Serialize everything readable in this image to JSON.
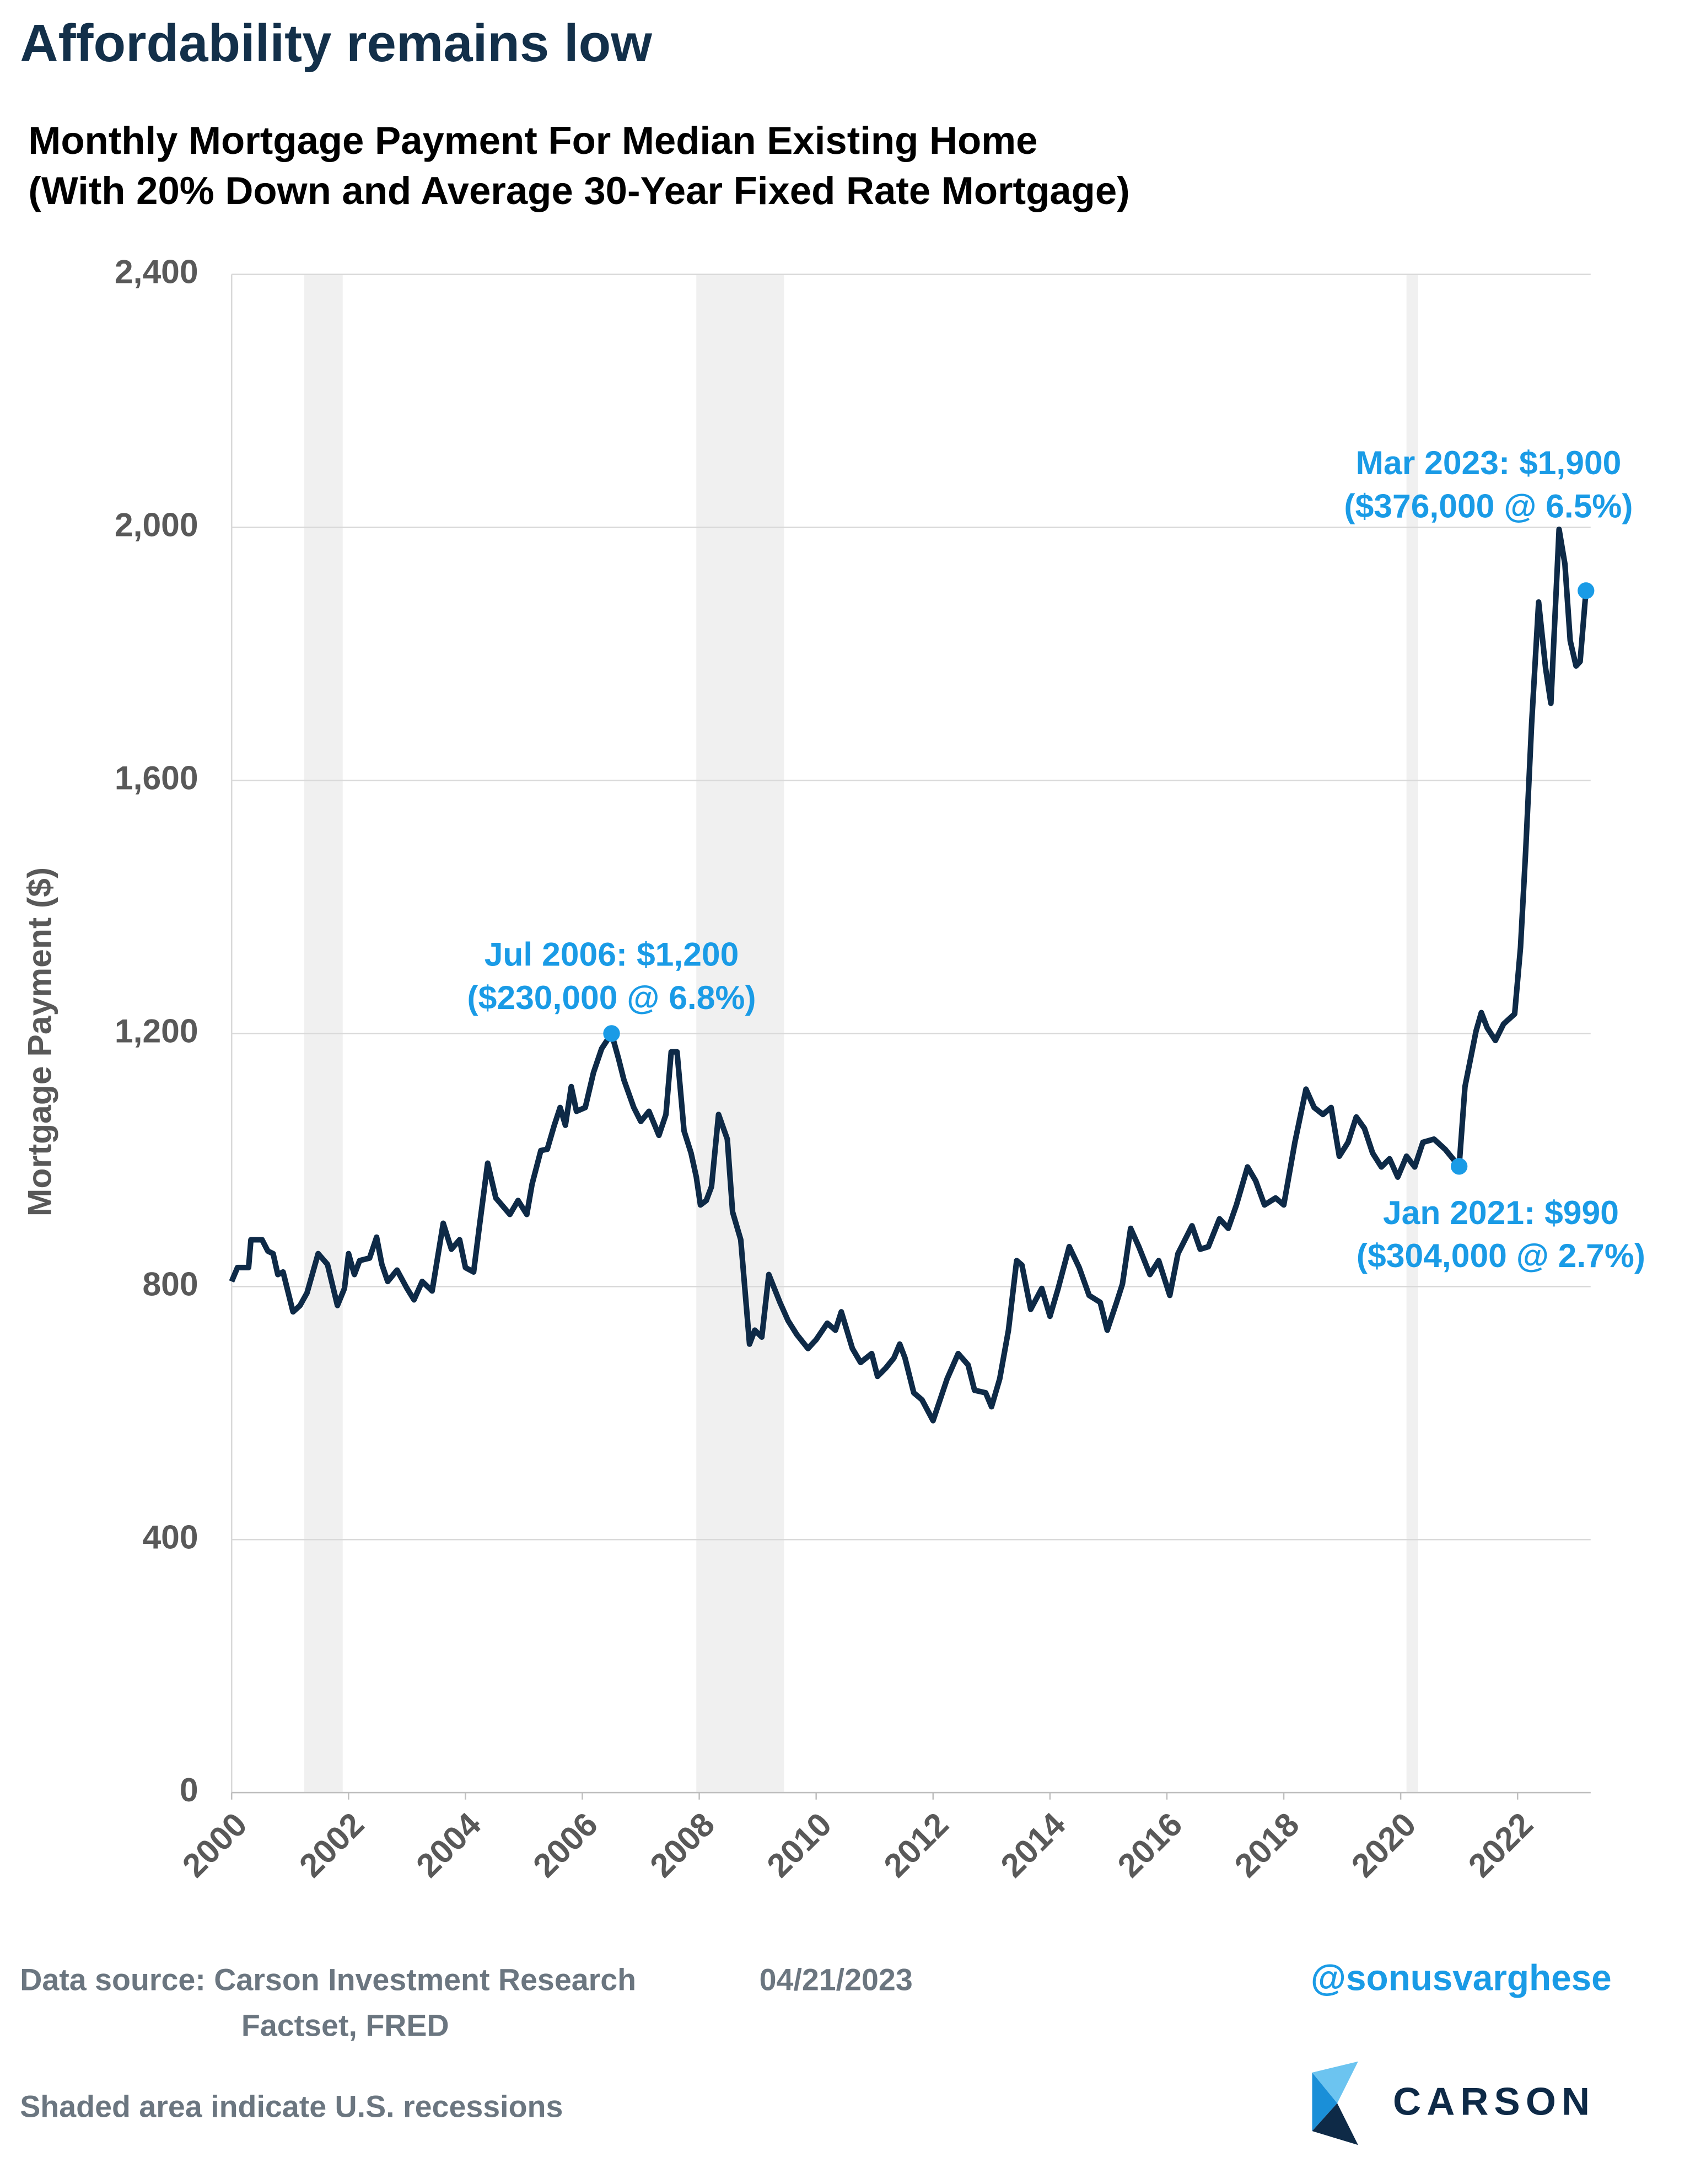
{
  "header": {
    "title": "Affordability remains low"
  },
  "chart_data": {
    "type": "line",
    "title": [
      "Monthly Mortgage Payment For Median Existing Home",
      "(With 20% Down and Average 30-Year Fixed Rate Mortgage)"
    ],
    "y_label": "Mortgage Payment ($)",
    "xlim": [
      2000,
      2023.25
    ],
    "xticks": [
      2000,
      2002,
      2004,
      2006,
      2008,
      2010,
      2012,
      2014,
      2016,
      2018,
      2020,
      2022
    ],
    "ylim": [
      0,
      2400
    ],
    "yticks": [
      0,
      400,
      800,
      {
        "value": 1200,
        "label": "1,200"
      },
      {
        "value": 1600,
        "label": "1,600"
      },
      {
        "value": 2000,
        "label": "2,000"
      },
      {
        "value": 2400,
        "label": "2,400"
      }
    ],
    "grid": true,
    "recessions": [
      [
        2001.24,
        2001.9
      ],
      [
        2007.95,
        2009.45
      ],
      [
        2020.1,
        2020.3
      ]
    ],
    "x": [
      2000.0,
      2000.1,
      2000.29,
      2000.33,
      2000.52,
      2000.62,
      2000.71,
      2000.79,
      2000.88,
      2000.95,
      2001.05,
      2001.17,
      2001.29,
      2001.48,
      2001.64,
      2001.81,
      2001.93,
      2002.0,
      2002.1,
      2002.19,
      2002.36,
      2002.48,
      2002.57,
      2002.67,
      2002.83,
      2003.0,
      2003.12,
      2003.26,
      2003.43,
      2003.62,
      2003.76,
      2003.9,
      2004.0,
      2004.14,
      2004.24,
      2004.38,
      2004.52,
      2004.76,
      2004.9,
      2005.05,
      2005.14,
      2005.29,
      2005.4,
      2005.52,
      2005.62,
      2005.71,
      2005.81,
      2005.9,
      2006.05,
      2006.19,
      2006.33,
      2006.5,
      2006.62,
      2006.71,
      2006.88,
      2007.0,
      2007.14,
      2007.31,
      2007.43,
      2007.52,
      2007.62,
      2007.74,
      2007.86,
      2007.95,
      2008.02,
      2008.12,
      2008.21,
      2008.33,
      2008.48,
      2008.57,
      2008.71,
      2008.86,
      2008.95,
      2009.07,
      2009.19,
      2009.38,
      2009.52,
      2009.67,
      2009.86,
      2010.0,
      2010.19,
      2010.33,
      2010.43,
      2010.62,
      2010.76,
      2010.95,
      2011.05,
      2011.19,
      2011.33,
      2011.43,
      2011.52,
      2011.67,
      2011.81,
      2012.0,
      2012.12,
      2012.24,
      2012.43,
      2012.6,
      2012.71,
      2012.9,
      2013.0,
      2013.14,
      2013.29,
      2013.43,
      2013.52,
      2013.67,
      2013.86,
      2014.0,
      2014.14,
      2014.33,
      2014.5,
      2014.67,
      2014.86,
      2014.98,
      2015.14,
      2015.24,
      2015.38,
      2015.52,
      2015.71,
      2015.86,
      2016.05,
      2016.19,
      2016.43,
      2016.57,
      2016.71,
      2016.9,
      2017.05,
      2017.19,
      2017.38,
      2017.52,
      2017.67,
      2017.86,
      2018.0,
      2018.19,
      2018.38,
      2018.52,
      2018.67,
      2018.81,
      2018.95,
      2019.1,
      2019.24,
      2019.38,
      2019.52,
      2019.67,
      2019.81,
      2019.95,
      2020.1,
      2020.24,
      2020.38,
      2020.57,
      2020.76,
      2021.0,
      2021.1,
      2021.29,
      2021.38,
      2021.48,
      2021.62,
      2021.76,
      2021.95,
      2022.05,
      2022.14,
      2022.24,
      2022.36,
      2022.48,
      2022.57,
      2022.71,
      2022.81,
      2022.9,
      2023.0,
      2023.07,
      2023.17
    ],
    "series": [
      {
        "name": "Mortgage Payment",
        "color": "#0e2a47",
        "values": [
          808,
          830,
          830,
          874,
          874,
          856,
          852,
          819,
          823,
          797,
          760,
          770,
          790,
          852,
          835,
          770,
          797,
          852,
          819,
          841,
          845,
          878,
          835,
          808,
          826,
          797,
          779,
          808,
          793,
          900,
          859,
          874,
          830,
          823,
          896,
          995,
          940,
          914,
          936,
          914,
          962,
          1015,
          1017,
          1055,
          1083,
          1055,
          1116,
          1077,
          1083,
          1138,
          1176,
          1200,
          1160,
          1127,
          1083,
          1061,
          1077,
          1039,
          1072,
          1171,
          1171,
          1046,
          1011,
          973,
          929,
          936,
          958,
          1072,
          1033,
          918,
          874,
          709,
          731,
          720,
          819,
          775,
          746,
          724,
          702,
          716,
          742,
          731,
          760,
          702,
          680,
          694,
          658,
          671,
          687,
          709,
          687,
          632,
          621,
          588,
          621,
          654,
          694,
          676,
          636,
          632,
          610,
          654,
          731,
          841,
          834,
          764,
          797,
          753,
          797,
          863,
          830,
          786,
          775,
          731,
          775,
          804,
          892,
          863,
          819,
          841,
          786,
          852,
          896,
          859,
          863,
          907,
          892,
          929,
          989,
          967,
          929,
          940,
          929,
          1028,
          1112,
          1083,
          1072,
          1083,
          1006,
          1028,
          1068,
          1050,
          1011,
          989,
          1002,
          973,
          1006,
          989,
          1028,
          1033,
          1017,
          990,
          1116,
          1204,
          1233,
          1209,
          1189,
          1215,
          1231,
          1336,
          1491,
          1689,
          1882,
          1777,
          1722,
          1997,
          1942,
          1821,
          1781,
          1788,
          1900
        ]
      }
    ],
    "annotations": [
      {
        "text": "Jul 2006: $1,200",
        "subtext": "($230,000 @ 6.8%)",
        "x": 2006.5,
        "y": 1200
      },
      {
        "text": "Jan 2021: $990",
        "subtext": "($304,000 @ 2.7%)",
        "x": 2021.0,
        "y": 990
      },
      {
        "text": "Mar 2023: $1,900",
        "subtext": "($376,000 @ 6.5%)",
        "x": 2023.17,
        "y": 1900
      }
    ],
    "annotation_color": "#1a9be6"
  },
  "footer": {
    "source": "Data source: Carson Investment Research",
    "date": "04/21/2023",
    "source2": "Factset, FRED",
    "note": "Shaded area indicate U.S. recessions",
    "handle": "@sonusvarghese",
    "logo": "CARSON"
  }
}
